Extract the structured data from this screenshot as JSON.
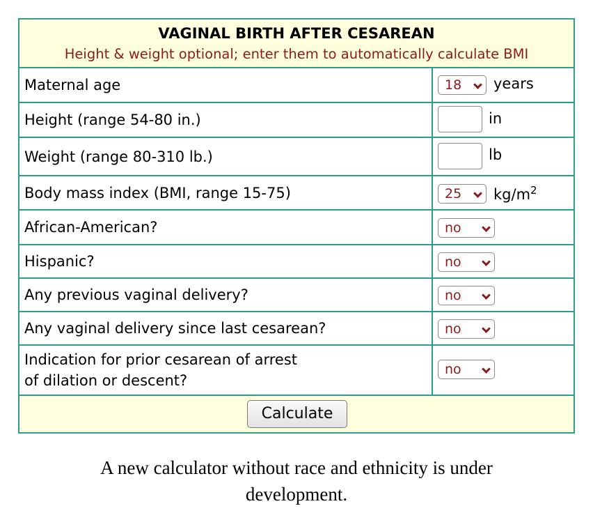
{
  "header": {
    "title": "VAGINAL BIRTH AFTER CESAREAN",
    "subtitle": "Height & weight optional; enter them to automatically calculate BMI"
  },
  "rows": {
    "age": {
      "label": "Maternal age",
      "value": "18",
      "unit": "years"
    },
    "height": {
      "label": "Height (range 54-80 in.)",
      "value": "",
      "unit": "in"
    },
    "weight": {
      "label": "Weight (range 80-310 lb.)",
      "value": "",
      "unit": "lb"
    },
    "bmi": {
      "label": "Body mass index (BMI, range 15-75)",
      "value": "25",
      "unit": "kg/m",
      "unit_sup": "2"
    },
    "african_american": {
      "label": "African-American?",
      "value": "no"
    },
    "hispanic": {
      "label": "Hispanic?",
      "value": "no"
    },
    "prev_vaginal": {
      "label": "Any previous vaginal delivery?",
      "value": "no"
    },
    "vaginal_since": {
      "label": "Any vaginal delivery since last cesarean?",
      "value": "no"
    },
    "arrest": {
      "label_line1": "Indication for prior cesarean of arrest",
      "label_line2": "of dilation or descent?",
      "value": "no"
    }
  },
  "calculate_label": "Calculate",
  "note": {
    "line1": "A new calculator without race and ethnicity is under",
    "line2": "development."
  },
  "colors": {
    "border": "#2a9d8f",
    "header_bg": "#ffffde",
    "accent": "#8b1a1a"
  }
}
